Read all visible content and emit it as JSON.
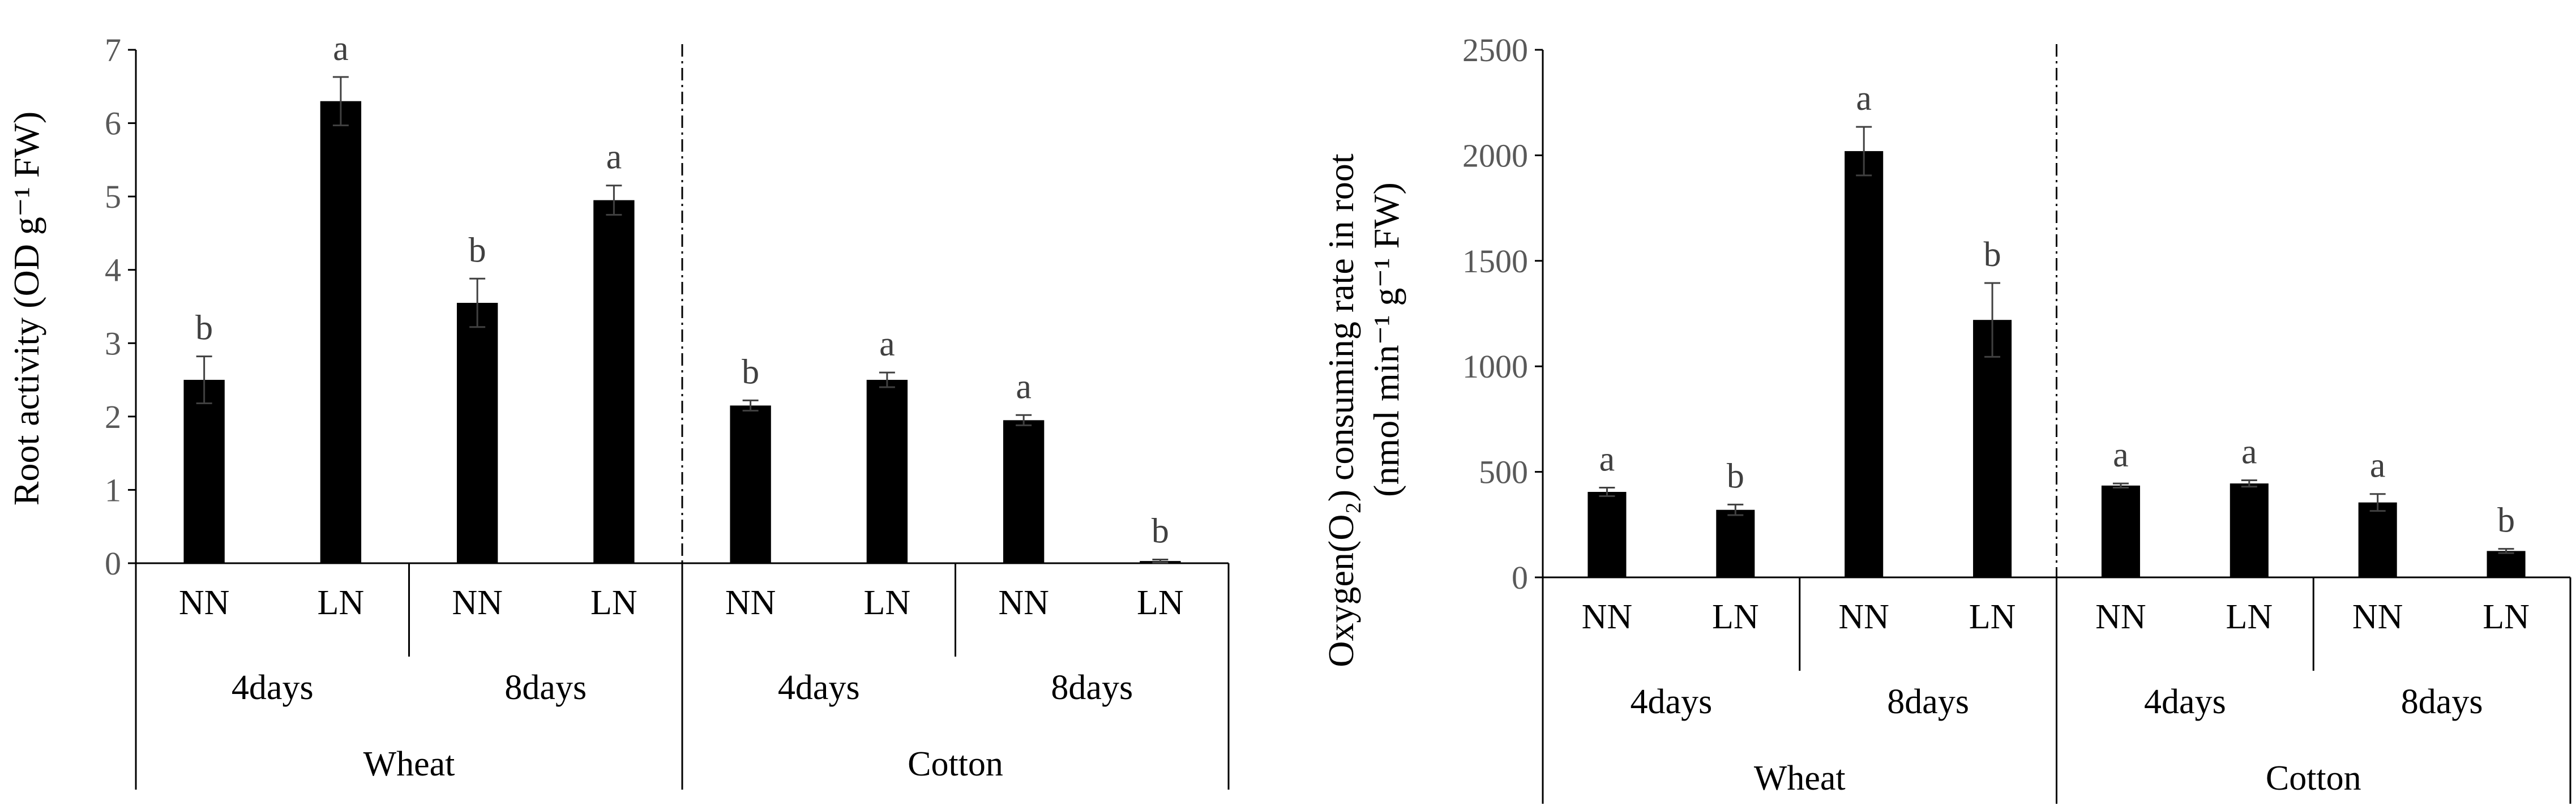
{
  "colors": {
    "bar": "#000000",
    "axis": "#000000",
    "separator": "#000000",
    "tick_label": "#595959"
  },
  "chart_data": [
    {
      "type": "bar",
      "title": "",
      "ylabel": "Root activity (OD g⁻¹ FW)",
      "ylim": [
        0,
        7
      ],
      "yticks": [
        0,
        1,
        2,
        3,
        4,
        5,
        6,
        7
      ],
      "grid": false,
      "categories": [
        "NN",
        "LN",
        "NN",
        "LN",
        "NN",
        "LN",
        "NN",
        "LN"
      ],
      "time_groups": [
        {
          "label": "4days",
          "span": [
            0,
            1
          ]
        },
        {
          "label": "8days",
          "span": [
            2,
            3
          ]
        },
        {
          "label": "4days",
          "span": [
            4,
            5
          ]
        },
        {
          "label": "8days",
          "span": [
            6,
            7
          ]
        }
      ],
      "species_groups": [
        {
          "label": "Wheat",
          "span": [
            0,
            3
          ]
        },
        {
          "label": "Cotton",
          "span": [
            4,
            7
          ]
        }
      ],
      "values": [
        2.5,
        6.3,
        3.55,
        4.95,
        2.15,
        2.5,
        1.95,
        0.03
      ],
      "errors": [
        0.32,
        0.33,
        0.33,
        0.2,
        0.07,
        0.1,
        0.07,
        0.02
      ],
      "significance": [
        "b",
        "a",
        "b",
        "a",
        "b",
        "a",
        "a",
        "b"
      ]
    },
    {
      "type": "bar",
      "title": "",
      "ylabel_line1": "Oxygen(O₂) consuming rate in root",
      "ylabel_line2": "(nmol min⁻¹ g⁻¹ FW)",
      "ylim": [
        0,
        2500
      ],
      "yticks": [
        0,
        500,
        1000,
        1500,
        2000,
        2500
      ],
      "grid": false,
      "categories": [
        "NN",
        "LN",
        "NN",
        "LN",
        "NN",
        "LN",
        "NN",
        "LN"
      ],
      "time_groups": [
        {
          "label": "4days",
          "span": [
            0,
            1
          ]
        },
        {
          "label": "8days",
          "span": [
            2,
            3
          ]
        },
        {
          "label": "4days",
          "span": [
            4,
            5
          ]
        },
        {
          "label": "8days",
          "span": [
            6,
            7
          ]
        }
      ],
      "species_groups": [
        {
          "label": "Wheat",
          "span": [
            0,
            3
          ]
        },
        {
          "label": "Cotton",
          "span": [
            4,
            7
          ]
        }
      ],
      "values": [
        405,
        320,
        2020,
        1220,
        435,
        445,
        355,
        125
      ],
      "errors": [
        20,
        25,
        115,
        175,
        10,
        15,
        40,
        10
      ],
      "significance": [
        "a",
        "b",
        "a",
        "b",
        "a",
        "a",
        "a",
        "b"
      ]
    }
  ]
}
